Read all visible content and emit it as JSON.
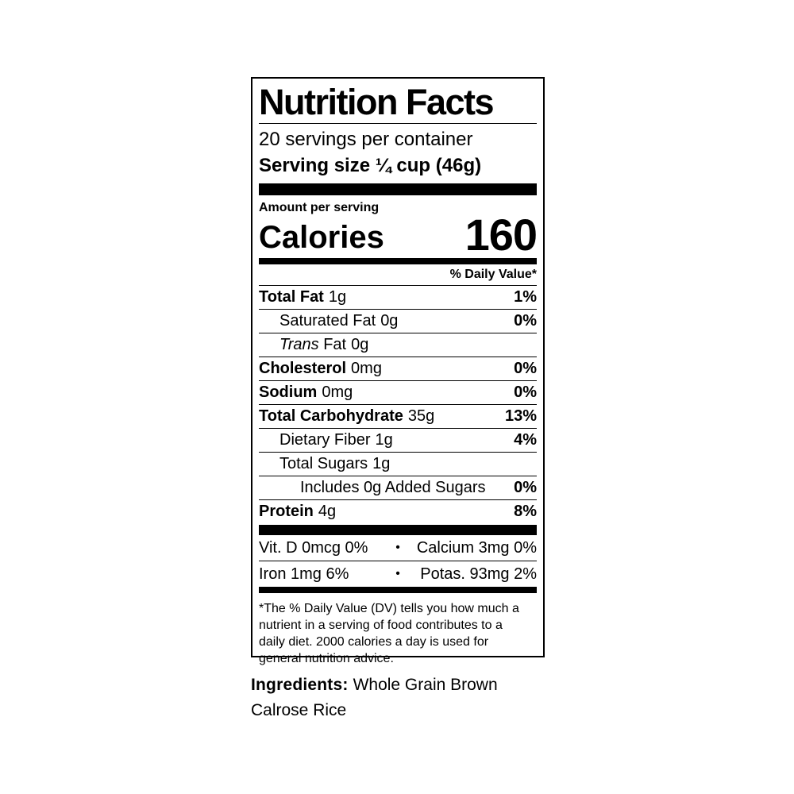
{
  "label": {
    "title": "Nutrition Facts",
    "servings_per_container": "20 servings per container",
    "serving_size": "Serving size ¼ cup (46g)",
    "amount_per_serving": "Amount per serving",
    "calories_label": "Calories",
    "calories_value": "160",
    "daily_value_header": "% Daily Value*",
    "rows": [
      {
        "name": "Total Fat",
        "amount": "1g",
        "dv": "1%"
      },
      {
        "name": "Saturated Fat",
        "amount": "0g",
        "dv": "0%"
      },
      {
        "name_italic": "Trans",
        "name": " Fat",
        "amount": "0g",
        "dv": ""
      },
      {
        "name": "Cholesterol",
        "amount": "0mg",
        "dv": "0%"
      },
      {
        "name": "Sodium",
        "amount": "0mg",
        "dv": "0%"
      },
      {
        "name": "Total Carbohydrate",
        "amount": "35g",
        "dv": "13%"
      },
      {
        "name": "Dietary Fiber",
        "amount": "1g",
        "dv": "4%"
      },
      {
        "name": "Total Sugars",
        "amount": "1g",
        "dv": ""
      },
      {
        "name": "Includes 0g Added Sugars",
        "amount": "",
        "dv": "0%"
      },
      {
        "name": "Protein",
        "amount": "4g",
        "dv": "8%"
      }
    ],
    "micros_bullet": "•",
    "micros": [
      {
        "left": "Vit. D 0mcg 0%",
        "right": "Calcium 3mg 0%"
      },
      {
        "left": "Iron 1mg 6%",
        "right": "Potas. 93mg 2%"
      }
    ],
    "footnote": "*The % Daily Value (DV) tells you how much a nutrient in a serving of food contributes to a daily diet. 2000 calories a day is used for general nutrition advice."
  },
  "ingredients": {
    "label": "Ingredients:",
    "text": "Whole Grain Brown Calrose Rice"
  },
  "colors": {
    "ink": "#000000",
    "background": "#ffffff"
  }
}
